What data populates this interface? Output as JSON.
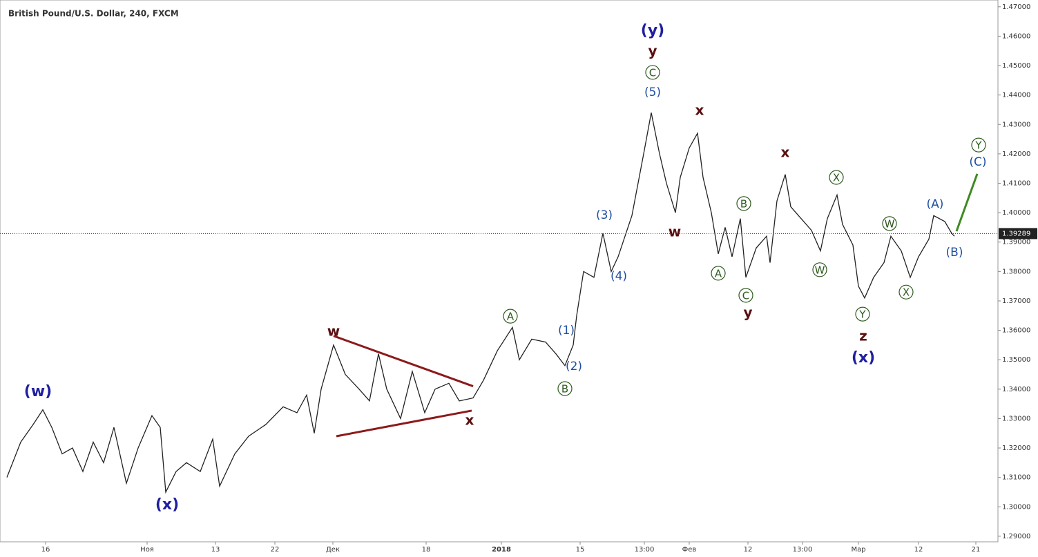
{
  "chart_data": {
    "type": "line",
    "title": "British Pound/U.S. Dollar, 240, FXCM",
    "series": [
      {
        "name": "GBPUSD",
        "color": "#222222",
        "x": [
          10,
          30,
          48,
          62,
          75,
          90,
          105,
          120,
          135,
          150,
          165,
          183,
          200,
          220,
          232,
          240,
          255,
          270,
          290,
          308,
          318,
          340,
          360,
          385,
          410,
          430,
          444,
          455,
          465,
          483,
          500,
          520,
          535,
          548,
          560,
          580,
          597,
          615,
          630,
          650,
          665,
          685,
          700,
          720,
          742,
          752,
          770,
          790,
          805,
          818,
          830,
          835,
          845,
          860,
          873,
          885,
          895,
          915,
          932,
          943,
          955,
          965,
          978,
          985,
          998,
          1010,
          1018,
          1030,
          1040,
          1050,
          1060,
          1072,
          1080,
          1095,
          1110,
          1115,
          1125,
          1137,
          1145,
          1160,
          1175,
          1188,
          1198,
          1212,
          1220,
          1235,
          1243,
          1252,
          1265,
          1280,
          1290,
          1305,
          1318,
          1330,
          1345,
          1352,
          1368,
          1378,
          1382
        ],
        "values": [
          1.31,
          1.322,
          1.328,
          1.333,
          1.327,
          1.318,
          1.32,
          1.312,
          1.322,
          1.315,
          1.327,
          1.308,
          1.32,
          1.331,
          1.327,
          1.305,
          1.312,
          1.315,
          1.312,
          1.323,
          1.307,
          1.318,
          1.324,
          1.328,
          1.334,
          1.332,
          1.338,
          1.325,
          1.34,
          1.355,
          1.345,
          1.34,
          1.336,
          1.352,
          1.34,
          1.33,
          1.346,
          1.332,
          1.34,
          1.342,
          1.336,
          1.337,
          1.343,
          1.353,
          1.361,
          1.35,
          1.357,
          1.356,
          1.352,
          1.348,
          1.355,
          1.365,
          1.38,
          1.378,
          1.393,
          1.38,
          1.385,
          1.399,
          1.42,
          1.434,
          1.42,
          1.41,
          1.4,
          1.412,
          1.422,
          1.427,
          1.412,
          1.4,
          1.386,
          1.395,
          1.385,
          1.398,
          1.378,
          1.388,
          1.392,
          1.383,
          1.404,
          1.413,
          1.402,
          1.398,
          1.394,
          1.387,
          1.398,
          1.406,
          1.396,
          1.389,
          1.375,
          1.371,
          1.378,
          1.383,
          1.392,
          1.387,
          1.378,
          1.385,
          1.391,
          1.399,
          1.397,
          1.393,
          1.392
        ]
      }
    ],
    "xlim": [
      0,
      1445
    ],
    "ylim": [
      1.2881,
      1.4723
    ],
    "xticks": [
      {
        "value": 66,
        "label": "16"
      },
      {
        "value": 213,
        "label": "Ноя"
      },
      {
        "value": 312,
        "label": "13"
      },
      {
        "value": 398,
        "label": "22"
      },
      {
        "value": 482,
        "label": "Дек"
      },
      {
        "value": 617,
        "label": "18"
      },
      {
        "value": 726,
        "label": "2018"
      },
      {
        "value": 840,
        "label": "15"
      },
      {
        "value": 933,
        "label": "13:00"
      },
      {
        "value": 998,
        "label": "Фев"
      },
      {
        "value": 1083,
        "label": "12"
      },
      {
        "value": 1162,
        "label": "13:00"
      },
      {
        "value": 1243,
        "label": "Мар"
      },
      {
        "value": 1330,
        "label": "12"
      },
      {
        "value": 1413,
        "label": "21"
      }
    ],
    "yticks": [
      {
        "value": 1.29,
        "label": "1.29000"
      },
      {
        "value": 1.3,
        "label": "1.30000"
      },
      {
        "value": 1.31,
        "label": "1.31000"
      },
      {
        "value": 1.32,
        "label": "1.32000"
      },
      {
        "value": 1.33,
        "label": "1.33000"
      },
      {
        "value": 1.34,
        "label": "1.34000"
      },
      {
        "value": 1.35,
        "label": "1.35000"
      },
      {
        "value": 1.36,
        "label": "1.36000"
      },
      {
        "value": 1.37,
        "label": "1.37000"
      },
      {
        "value": 1.38,
        "label": "1.38000"
      },
      {
        "value": 1.39,
        "label": "1.39000"
      },
      {
        "value": 1.4,
        "label": "1.40000"
      },
      {
        "value": 1.41,
        "label": "1.41000"
      },
      {
        "value": 1.42,
        "label": "1.42000"
      },
      {
        "value": 1.43,
        "label": "1.43000"
      },
      {
        "value": 1.44,
        "label": "1.44000"
      },
      {
        "value": 1.45,
        "label": "1.45000"
      },
      {
        "value": 1.46,
        "label": "1.46000"
      },
      {
        "value": 1.47,
        "label": "1.47000"
      }
    ],
    "current_price": {
      "value": 1.39289,
      "label": "1.39289"
    },
    "trend_lines": [
      {
        "color": "#8b1a1a",
        "x": [
          483,
          685
        ],
        "y": [
          1.3581,
          1.341
        ]
      },
      {
        "color": "#8b1a1a",
        "x": [
          487,
          683
        ],
        "y": [
          1.324,
          1.3327
        ]
      },
      {
        "color": "#3d8a22",
        "x": [
          1385,
          1415
        ],
        "y": [
          1.3937,
          1.4132
        ]
      }
    ],
    "annotations": [
      {
        "text": "(w)",
        "x": 55,
        "y": 1.3393,
        "style": "major"
      },
      {
        "text": "(x)",
        "x": 242,
        "y": 1.3008,
        "style": "major"
      },
      {
        "text": "w",
        "x": 483,
        "y": 1.3597,
        "style": "minor"
      },
      {
        "text": "x",
        "x": 680,
        "y": 1.3294,
        "style": "minor"
      },
      {
        "text": "A",
        "x": 739,
        "y": 1.3648,
        "style": "circle"
      },
      {
        "text": "B",
        "x": 818,
        "y": 1.3402,
        "style": "circle"
      },
      {
        "text": "(1)",
        "x": 820,
        "y": 1.3601,
        "style": "sub"
      },
      {
        "text": "(2)",
        "x": 831,
        "y": 1.3479,
        "style": "sub"
      },
      {
        "text": "(3)",
        "x": 875,
        "y": 1.3993,
        "style": "sub"
      },
      {
        "text": "(4)",
        "x": 896,
        "y": 1.3785,
        "style": "sub"
      },
      {
        "text": "(5)",
        "x": 945,
        "y": 1.4411,
        "style": "sub"
      },
      {
        "text": "C",
        "x": 945,
        "y": 1.4477,
        "style": "circle"
      },
      {
        "text": "y",
        "x": 945,
        "y": 1.4549,
        "style": "minor"
      },
      {
        "text": "(y)",
        "x": 945,
        "y": 1.462,
        "style": "major"
      },
      {
        "text": "x",
        "x": 1013,
        "y": 1.4348,
        "style": "minor"
      },
      {
        "text": "w",
        "x": 977,
        "y": 1.3935,
        "style": "minor"
      },
      {
        "text": "A",
        "x": 1040,
        "y": 1.3794,
        "style": "circle"
      },
      {
        "text": "B",
        "x": 1077,
        "y": 1.4031,
        "style": "circle"
      },
      {
        "text": "C",
        "x": 1080,
        "y": 1.3719,
        "style": "circle"
      },
      {
        "text": "y",
        "x": 1083,
        "y": 1.366,
        "style": "minor"
      },
      {
        "text": "x",
        "x": 1137,
        "y": 1.4204,
        "style": "minor"
      },
      {
        "text": "W",
        "x": 1187,
        "y": 1.3806,
        "style": "circle"
      },
      {
        "text": "X",
        "x": 1211,
        "y": 1.412,
        "style": "circle"
      },
      {
        "text": "Y",
        "x": 1249,
        "y": 1.3655,
        "style": "circle"
      },
      {
        "text": "z",
        "x": 1250,
        "y": 1.358,
        "style": "minor"
      },
      {
        "text": "(x)",
        "x": 1250,
        "y": 1.3508,
        "style": "major"
      },
      {
        "text": "W",
        "x": 1288,
        "y": 1.3963,
        "style": "circle"
      },
      {
        "text": "X",
        "x": 1312,
        "y": 1.373,
        "style": "circle"
      },
      {
        "text": "(A)",
        "x": 1354,
        "y": 1.4031,
        "style": "sub"
      },
      {
        "text": "(B)",
        "x": 1382,
        "y": 1.3867,
        "style": "sub"
      },
      {
        "text": "Y",
        "x": 1417,
        "y": 1.423,
        "style": "circle"
      },
      {
        "text": "(C)",
        "x": 1416,
        "y": 1.4174,
        "style": "sub"
      }
    ]
  }
}
